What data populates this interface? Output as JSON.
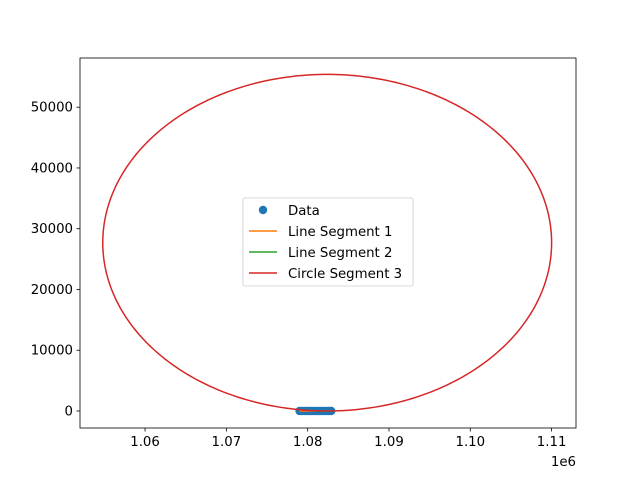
{
  "chart_data": {
    "type": "scatter",
    "title": "",
    "xlabel": "",
    "ylabel": "",
    "x_offset_text": "1e6",
    "xlim": [
      1052000,
      1113000
    ],
    "ylim": [
      -2800,
      58100
    ],
    "xticks": [
      1060000,
      1070000,
      1080000,
      1090000,
      1100000,
      1110000
    ],
    "xtick_labels": [
      "1.06",
      "1.07",
      "1.08",
      "1.09",
      "1.10",
      "1.11"
    ],
    "yticks": [
      0,
      10000,
      20000,
      30000,
      40000,
      50000
    ],
    "ytick_labels": [
      "0",
      "10000",
      "20000",
      "30000",
      "40000",
      "50000"
    ],
    "legend_position": "center",
    "series": [
      {
        "name": "Data",
        "kind": "points",
        "color": "#1f77b4",
        "x": [
          1079000,
          1079300,
          1079600,
          1079900,
          1080200,
          1080500,
          1080800,
          1081100,
          1081400,
          1081700,
          1082000,
          1082300,
          1082600,
          1082900
        ],
        "y": [
          0,
          0,
          0,
          0,
          0,
          0,
          0,
          0,
          0,
          0,
          0,
          0,
          0,
          0
        ]
      },
      {
        "name": "Line Segment 1",
        "kind": "line",
        "color": "#ff7f0e",
        "x": [
          1079000,
          1080800
        ],
        "y": [
          0,
          0
        ]
      },
      {
        "name": "Line Segment 2",
        "kind": "line",
        "color": "#2ca02c",
        "x": [
          1080800,
          1082900
        ],
        "y": [
          0,
          0
        ]
      },
      {
        "name": "Circle Segment 3",
        "kind": "circle",
        "color": "#d62728",
        "center": [
          1082400,
          27700
        ],
        "radius_x": 27600,
        "radius_y": 27700
      }
    ]
  }
}
